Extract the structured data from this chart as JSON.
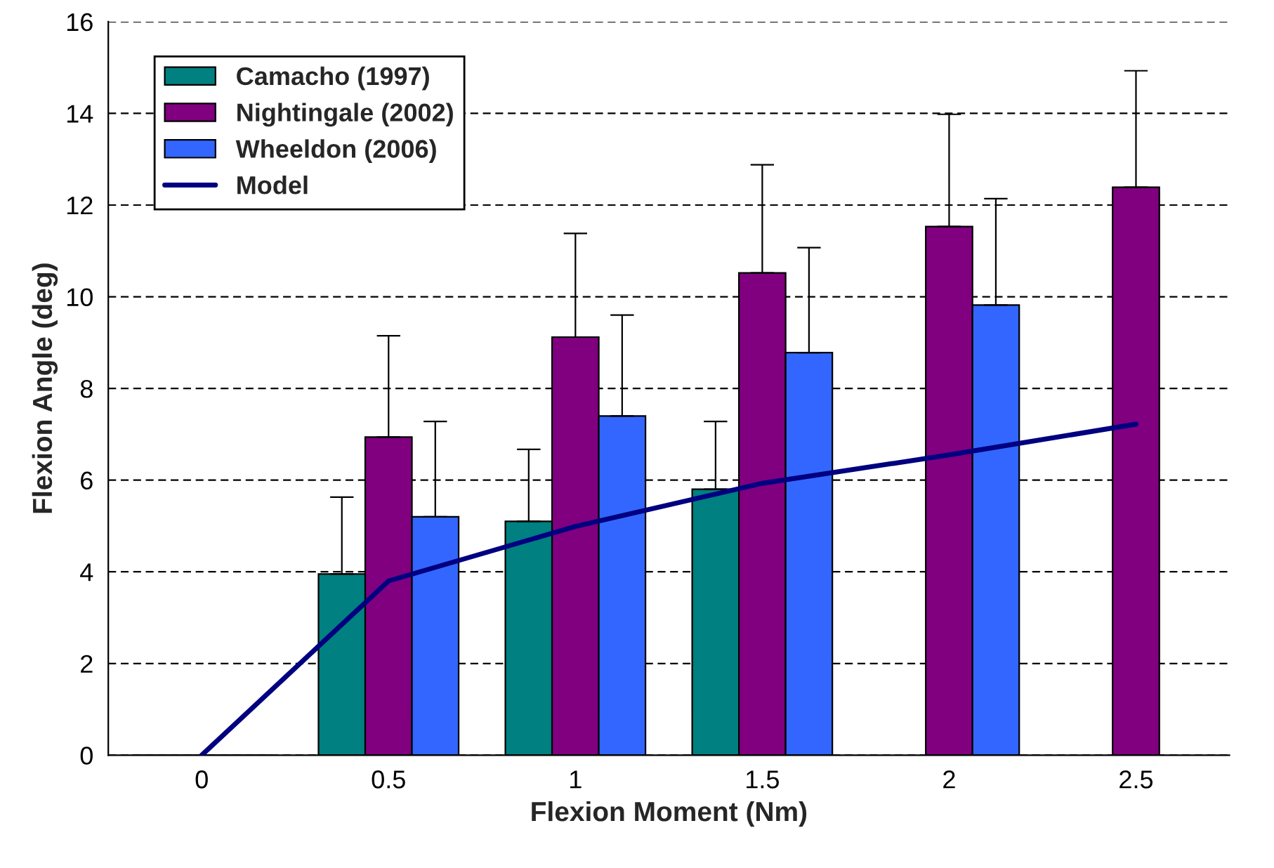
{
  "chart_data": {
    "type": "bar",
    "xlabel": "Flexion Moment (Nm)",
    "ylabel": "Flexion Angle (deg)",
    "categories": [
      "0",
      "0.5",
      "1",
      "1.5",
      "2",
      "2.5"
    ],
    "series": [
      {
        "name": "Camacho (1997)",
        "color": "#008080",
        "values": [
          0,
          3.95,
          5.1,
          5.8,
          null,
          null
        ],
        "errors": [
          null,
          [
            3.95,
            5.63
          ],
          [
            5.1,
            6.67
          ],
          [
            5.8,
            7.28
          ],
          null,
          null
        ]
      },
      {
        "name": "Nightingale (2002)",
        "color": "#800080",
        "values": [
          0,
          6.94,
          9.12,
          10.52,
          11.53,
          12.39
        ],
        "errors": [
          null,
          [
            6.94,
            9.15
          ],
          [
            9.12,
            11.38
          ],
          [
            10.52,
            12.88
          ],
          [
            11.53,
            13.98
          ],
          [
            12.39,
            14.93
          ]
        ]
      },
      {
        "name": "Wheeldon (2006)",
        "color": "#3366ff",
        "values": [
          0,
          5.2,
          7.4,
          8.78,
          9.82,
          null
        ],
        "errors": [
          null,
          [
            5.2,
            7.28
          ],
          [
            7.4,
            9.6
          ],
          [
            8.78,
            11.07
          ],
          [
            9.82,
            12.14
          ],
          null
        ]
      },
      {
        "name": "Model",
        "type": "line",
        "color": "#000080",
        "values": [
          0,
          3.8,
          4.99,
          5.93,
          6.55,
          7.22
        ]
      }
    ],
    "ylim": [
      0,
      16
    ],
    "yticks": [
      0,
      2,
      4,
      6,
      8,
      10,
      12,
      14,
      16
    ],
    "grid": "y",
    "legend": "top left",
    "marker": "none",
    "line_style": "solid"
  }
}
